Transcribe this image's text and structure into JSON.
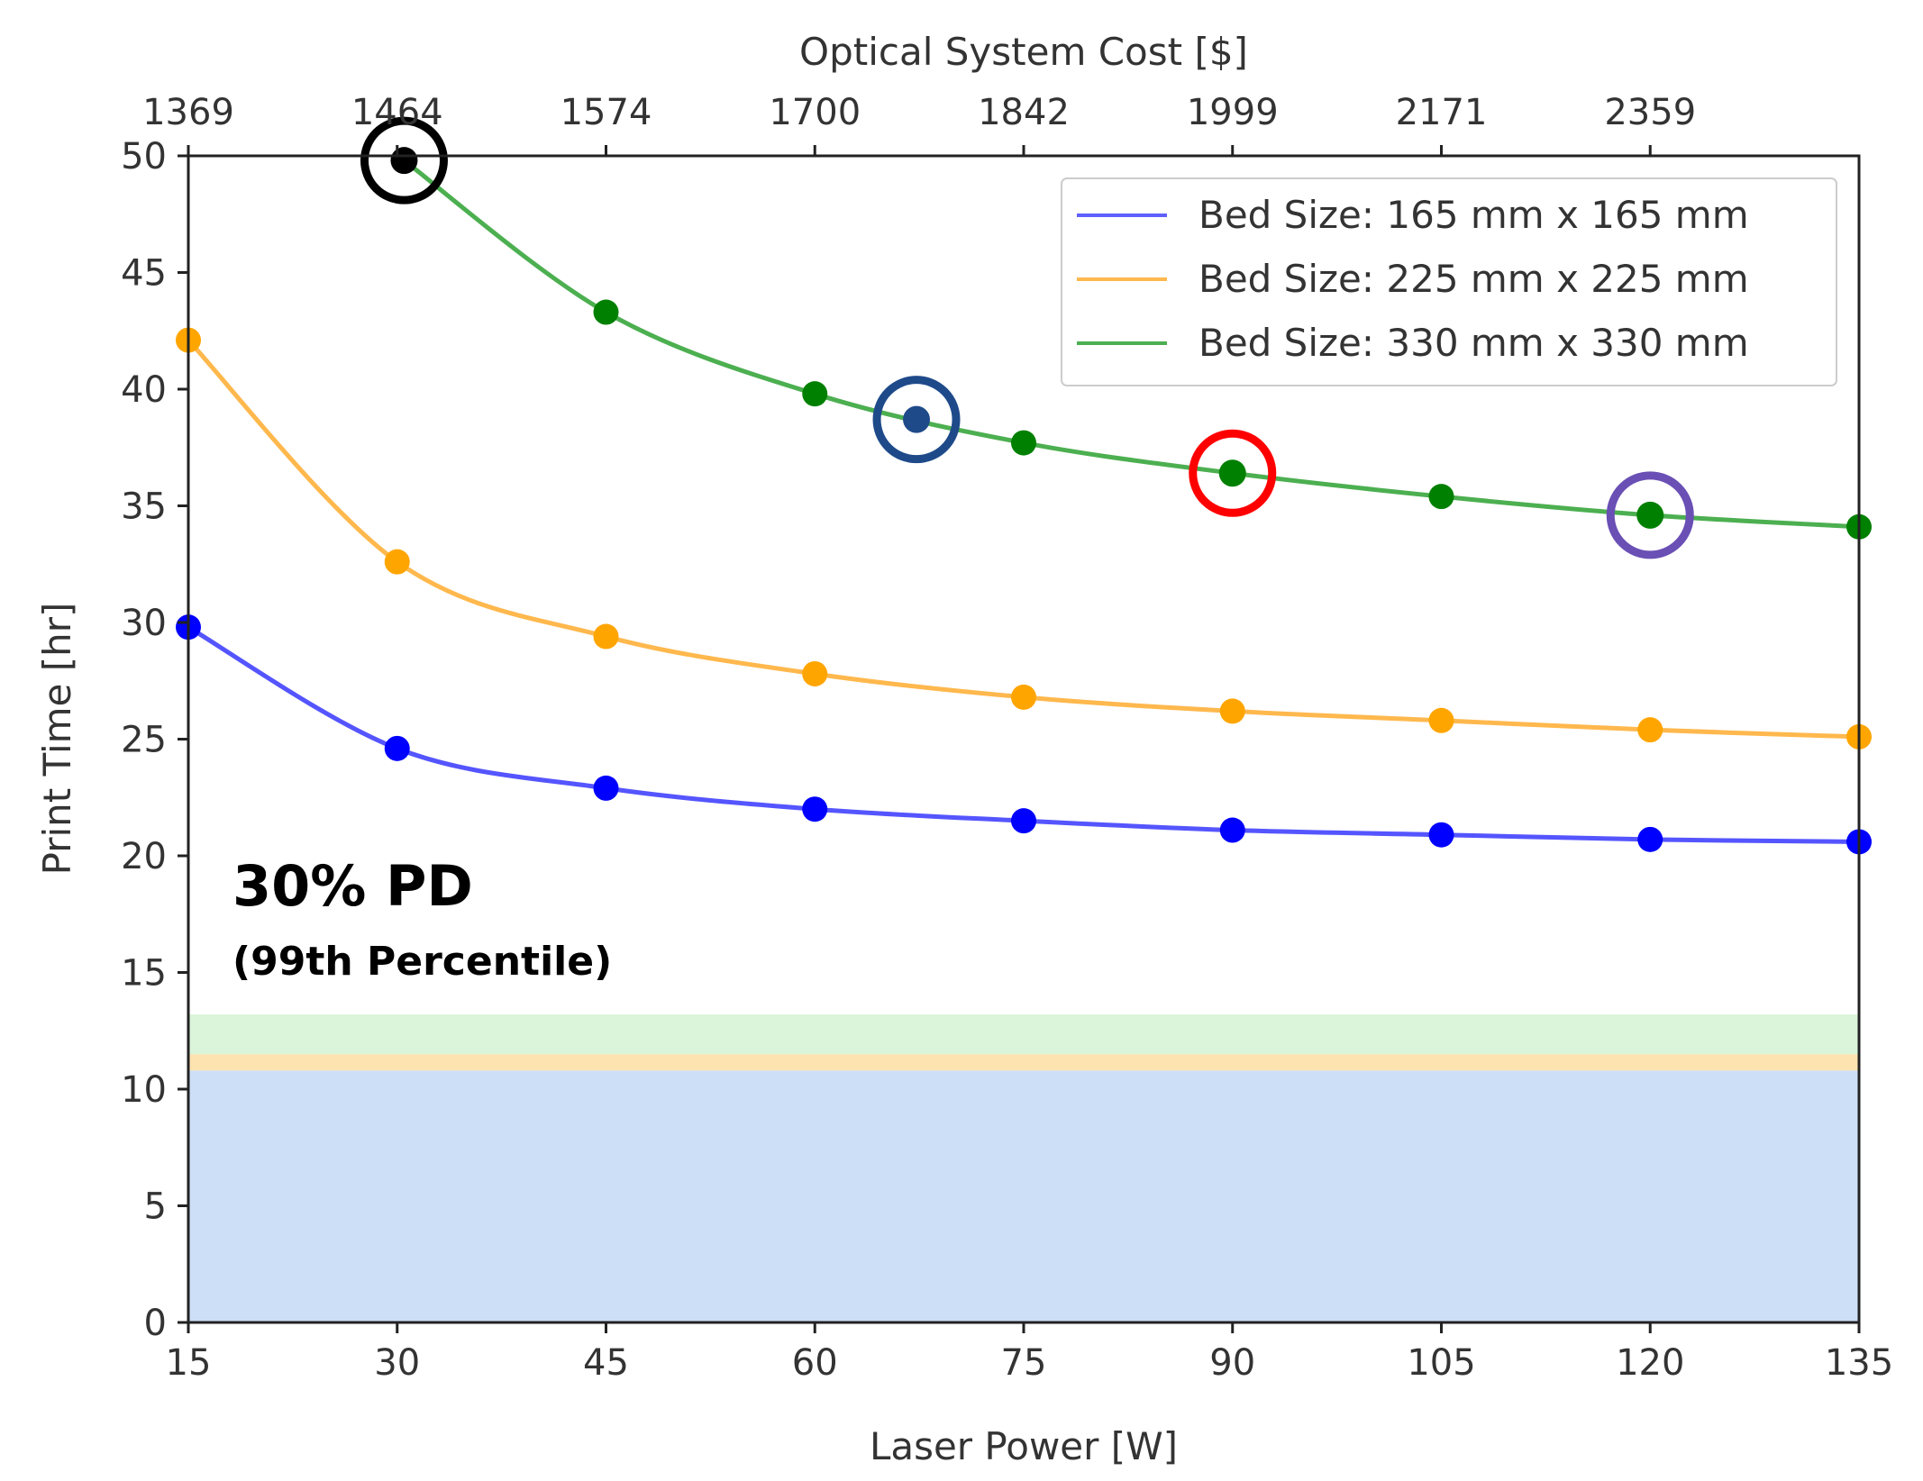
{
  "chart_data": {
    "type": "line",
    "xlabel": "Laser Power [W]",
    "ylabel": "Print Time  [hr]",
    "top_xlabel": "Optical System Cost [$]",
    "xlim": [
      15,
      135
    ],
    "ylim": [
      0,
      50
    ],
    "grid": false,
    "legend_position": "top-right",
    "x_ticks": [
      15,
      30,
      45,
      60,
      75,
      90,
      105,
      120,
      135
    ],
    "y_ticks": [
      0,
      5,
      10,
      15,
      20,
      25,
      30,
      35,
      40,
      45,
      50
    ],
    "top_ticks": [
      {
        "x": 15,
        "label": "1369"
      },
      {
        "x": 30,
        "label": "1464"
      },
      {
        "x": 45,
        "label": "1574"
      },
      {
        "x": 60,
        "label": "1700"
      },
      {
        "x": 75,
        "label": "1842"
      },
      {
        "x": 90,
        "label": "1999"
      },
      {
        "x": 105,
        "label": "2171"
      },
      {
        "x": 120,
        "label": "2359"
      }
    ],
    "series": [
      {
        "name": "Bed Size: 165 mm x 165 mm",
        "color": "#0000ff",
        "x": [
          15,
          30,
          45,
          60,
          75,
          90,
          105,
          120,
          135
        ],
        "y": [
          29.8,
          24.6,
          22.9,
          22.0,
          21.5,
          21.1,
          20.9,
          20.7,
          20.6
        ]
      },
      {
        "name": "Bed Size: 225 mm x 225 mm",
        "color": "#ffa500",
        "x": [
          15,
          30,
          45,
          60,
          75,
          90,
          105,
          120,
          135
        ],
        "y": [
          42.1,
          32.6,
          29.4,
          27.8,
          26.8,
          26.2,
          25.8,
          25.4,
          25.1
        ]
      },
      {
        "name": "Bed Size: 330 mm x 330 mm",
        "color": "#008000",
        "x": [
          30.5,
          45,
          60,
          75,
          90,
          105,
          120,
          135
        ],
        "y": [
          49.8,
          43.3,
          39.8,
          37.7,
          36.4,
          35.4,
          34.6,
          34.1
        ]
      }
    ],
    "highlights": [
      {
        "x": 30.5,
        "y": 49.8,
        "color": "#000000",
        "fill": "#000000"
      },
      {
        "x": 67.3,
        "y": 38.7,
        "color": "#1f4a8a",
        "fill": "#1f4a8a"
      },
      {
        "x": 90,
        "y": 36.4,
        "color": "#ff0000",
        "fill": "#008000"
      },
      {
        "x": 120,
        "y": 34.6,
        "color": "#6a4fb5",
        "fill": "#008000"
      }
    ],
    "bands": [
      {
        "y0": 0,
        "y1": 10.8,
        "color": "#cddff7"
      },
      {
        "y0": 10.8,
        "y1": 11.5,
        "color": "#fde3b0"
      },
      {
        "y0": 11.5,
        "y1": 13.2,
        "color": "#daf5da"
      }
    ],
    "annotations": [
      "30% PD",
      "(99th Percentile)"
    ]
  }
}
